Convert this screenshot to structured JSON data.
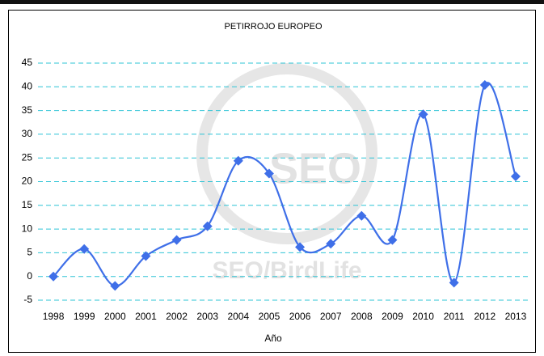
{
  "chart_data": {
    "type": "line",
    "title": "PETIRROJO EUROPEO",
    "x_label": "Año",
    "watermark": "SEO/BirdLife",
    "logo_text": "SEO",
    "categories": [
      "1998",
      "1999",
      "2000",
      "2001",
      "2002",
      "2003",
      "2004",
      "2005",
      "2006",
      "2007",
      "2008",
      "2009",
      "2010",
      "2011",
      "2012",
      "2013"
    ],
    "series": [
      {
        "name": "Petirrojo europeo",
        "color": "#3f6fe8",
        "values": [
          0,
          5.8,
          -2,
          4.3,
          7.7,
          10.6,
          24.4,
          21.7,
          6.2,
          6.9,
          12.8,
          7.7,
          34.2,
          -1.3,
          40.4,
          21.1
        ]
      }
    ],
    "ylim": [
      -5,
      45
    ],
    "yticks": [
      -5,
      0,
      5,
      10,
      15,
      20,
      25,
      30,
      35,
      40,
      45
    ],
    "grid": true,
    "smooth": true
  }
}
